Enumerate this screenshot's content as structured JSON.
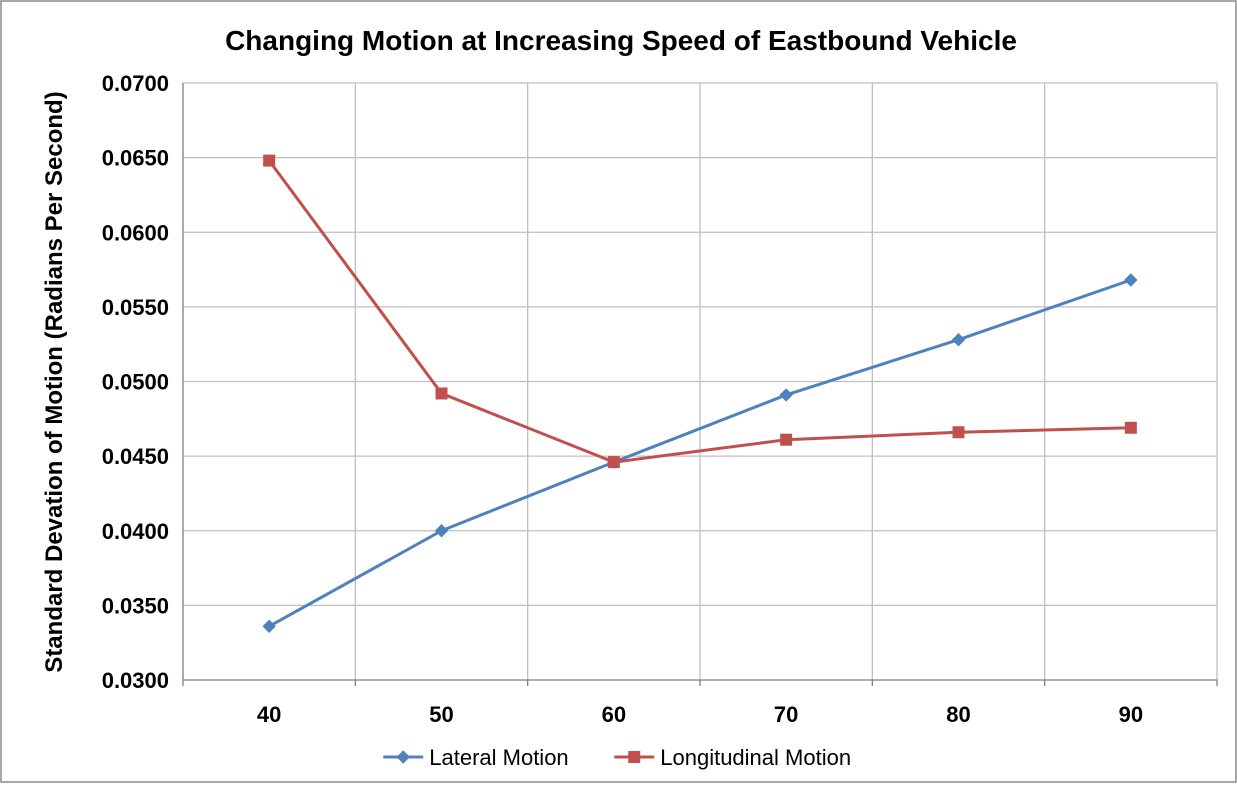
{
  "chart_data": {
    "type": "line",
    "title": "Changing Motion at Increasing Speed of  Eastbound Vehicle",
    "xlabel": "",
    "ylabel": "Standard Devation of Motion (Radians Per Second)",
    "categories": [
      "40",
      "50",
      "60",
      "70",
      "80",
      "90"
    ],
    "ylim": [
      0.03,
      0.07
    ],
    "yticks": [
      "0.0300",
      "0.0350",
      "0.0400",
      "0.0450",
      "0.0500",
      "0.0550",
      "0.0600",
      "0.0650",
      "0.0700"
    ],
    "grid": true,
    "legend_position": "bottom",
    "series": [
      {
        "name": "Lateral Motion",
        "color": "#4f81bd",
        "marker": "diamond",
        "values": [
          0.0336,
          0.04,
          0.0446,
          0.0491,
          0.0528,
          0.0568
        ]
      },
      {
        "name": "Longitudinal Motion",
        "color": "#c0504d",
        "marker": "square",
        "values": [
          0.0648,
          0.0492,
          0.0446,
          0.0461,
          0.0466,
          0.0469
        ]
      }
    ]
  }
}
